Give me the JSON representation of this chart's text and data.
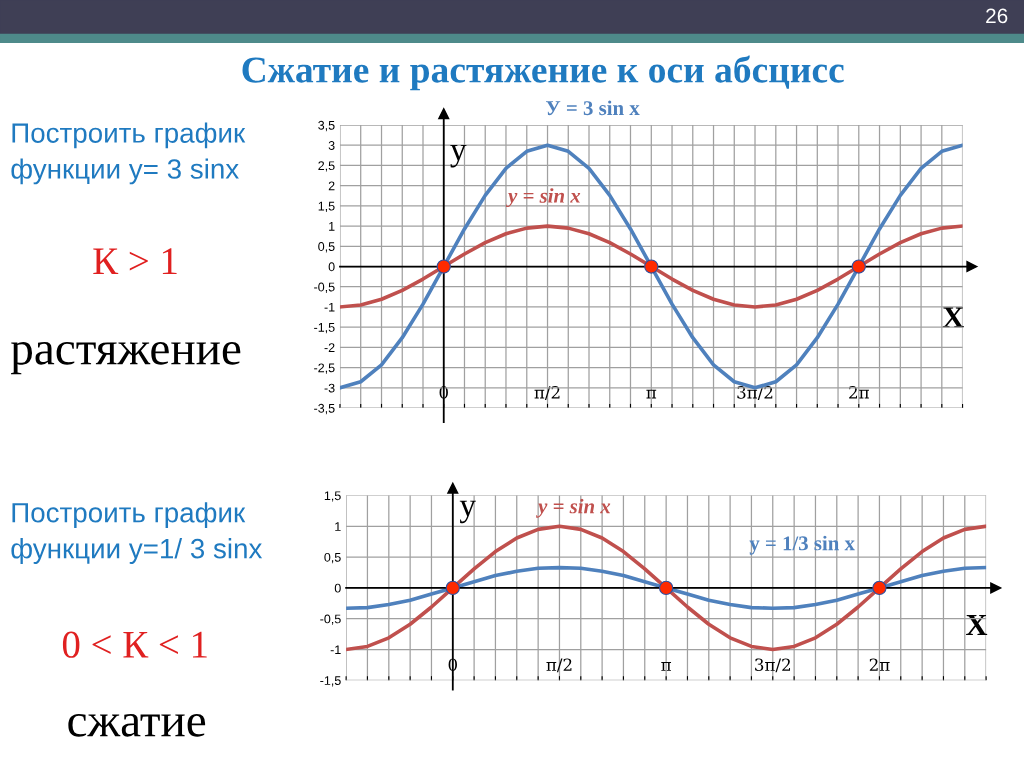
{
  "chart_data": [
    {
      "type": "line",
      "title": "Сжатие и растяжение к оси абсцисс",
      "xlabel": "X",
      "ylabel": "y",
      "annotations": [
        "26",
        "Построить график\nфункции у= 3 sinx",
        "К > 1",
        "растяжение"
      ],
      "x": [
        -1.571,
        -1.257,
        -0.942,
        -0.628,
        -0.314,
        0,
        0.314,
        0.628,
        0.942,
        1.257,
        1.571,
        1.885,
        2.199,
        2.513,
        2.827,
        3.142,
        3.456,
        3.77,
        4.084,
        4.398,
        4.712,
        5.027,
        5.341,
        5.655,
        5.969,
        6.283,
        6.597,
        6.912,
        7.226,
        7.54,
        7.854
      ],
      "series": [
        {
          "name": "У = 3 sin x",
          "color": "#4f81bd",
          "values": [
            -3,
            -2.85,
            -2.43,
            -1.76,
            -0.93,
            0,
            0.93,
            1.76,
            2.43,
            2.85,
            3,
            2.85,
            2.43,
            1.76,
            0.93,
            0,
            -0.93,
            -1.76,
            -2.43,
            -2.85,
            -3,
            -2.85,
            -2.43,
            -1.76,
            -0.93,
            0,
            0.93,
            1.76,
            2.43,
            2.85,
            3
          ]
        },
        {
          "name": "y = sin x",
          "color": "#c0504d",
          "values": [
            -1,
            -0.95,
            -0.81,
            -0.59,
            -0.31,
            0,
            0.31,
            0.59,
            0.81,
            0.95,
            1,
            0.95,
            0.81,
            0.59,
            0.31,
            0,
            -0.31,
            -0.59,
            -0.81,
            -0.95,
            -1,
            -0.95,
            -0.81,
            -0.59,
            -0.31,
            0,
            0.31,
            0.59,
            0.81,
            0.95,
            1
          ]
        },
        {
          "type": "scatter",
          "marker": "circle",
          "color": "#ff2a00",
          "x": [
            0,
            3.142,
            6.283
          ],
          "values": [
            0,
            0,
            0
          ]
        }
      ],
      "xlim": [
        -1.571,
        7.854
      ],
      "xticks": [
        {
          "value": -1.571,
          "label": null
        },
        {
          "value": -1.257,
          "label": null
        },
        {
          "value": -0.942,
          "label": null
        },
        {
          "value": -0.628,
          "label": null
        },
        {
          "value": -0.314,
          "label": null
        },
        {
          "value": 0,
          "label": "0"
        },
        {
          "value": 0.314,
          "label": null
        },
        {
          "value": 0.628,
          "label": null
        },
        {
          "value": 0.942,
          "label": null
        },
        {
          "value": 1.257,
          "label": null
        },
        {
          "value": 1.571,
          "label": "π/2"
        },
        {
          "value": 1.885,
          "label": null
        },
        {
          "value": 2.199,
          "label": null
        },
        {
          "value": 2.513,
          "label": null
        },
        {
          "value": 2.827,
          "label": null
        },
        {
          "value": 3.142,
          "label": "π"
        },
        {
          "value": 3.456,
          "label": null
        },
        {
          "value": 3.77,
          "label": null
        },
        {
          "value": 4.084,
          "label": null
        },
        {
          "value": 4.398,
          "label": null
        },
        {
          "value": 4.712,
          "label": "3π/2"
        },
        {
          "value": 5.027,
          "label": null
        },
        {
          "value": 5.341,
          "label": null
        },
        {
          "value": 5.655,
          "label": null
        },
        {
          "value": 5.969,
          "label": null
        },
        {
          "value": 6.283,
          "label": "2π"
        },
        {
          "value": 6.597,
          "label": null
        },
        {
          "value": 6.912,
          "label": null
        },
        {
          "value": 7.226,
          "label": null
        },
        {
          "value": 7.54,
          "label": null
        },
        {
          "value": 7.854,
          "label": null
        }
      ],
      "ylim": [
        -3.5,
        3.5
      ],
      "yticks": [
        {
          "value": -3.5,
          "label": "-3,5"
        },
        -3,
        {
          "value": -2.5,
          "label": "-2,5"
        },
        -2,
        {
          "value": -1.5,
          "label": "-1,5"
        },
        -1,
        {
          "value": -0.5,
          "label": "-0,5"
        },
        0,
        {
          "value": 0.5,
          "label": "0,5"
        },
        1,
        {
          "value": 1.5,
          "label": "1,5"
        },
        2,
        {
          "value": 2.5,
          "label": "2,5"
        },
        3,
        {
          "value": 3.5,
          "label": "3,5"
        }
      ],
      "grid": true,
      "marker": "none",
      "line_style": "solid",
      "legend": false
    },
    {
      "type": "line",
      "xlabel": "X",
      "ylabel": "y",
      "annotations": [
        "Построить график\nфункции y=1/ 3 sinx",
        "0 < К < 1",
        "сжатие"
      ],
      "x": [
        -1.571,
        -1.257,
        -0.942,
        -0.628,
        -0.314,
        0,
        0.314,
        0.628,
        0.942,
        1.257,
        1.571,
        1.885,
        2.199,
        2.513,
        2.827,
        3.142,
        3.456,
        3.77,
        4.084,
        4.398,
        4.712,
        5.027,
        5.341,
        5.655,
        5.969,
        6.283,
        6.597,
        6.912,
        7.226,
        7.54,
        7.854
      ],
      "series": [
        {
          "name": "y = sin x",
          "color": "#c0504d",
          "values": [
            -1,
            -0.95,
            -0.81,
            -0.59,
            -0.31,
            0,
            0.31,
            0.59,
            0.81,
            0.95,
            1,
            0.95,
            0.81,
            0.59,
            0.31,
            0,
            -0.31,
            -0.59,
            -0.81,
            -0.95,
            -1,
            -0.95,
            -0.81,
            -0.59,
            -0.31,
            0,
            0.31,
            0.59,
            0.81,
            0.95,
            1
          ]
        },
        {
          "name": "y = 1/3 sin x",
          "color": "#4f81bd",
          "values": [
            -0.33,
            -0.32,
            -0.27,
            -0.2,
            -0.1,
            0,
            0.1,
            0.2,
            0.27,
            0.32,
            0.33,
            0.32,
            0.27,
            0.2,
            0.1,
            0,
            -0.1,
            -0.2,
            -0.27,
            -0.32,
            -0.33,
            -0.32,
            -0.27,
            -0.2,
            -0.1,
            0,
            0.1,
            0.2,
            0.27,
            0.32,
            0.33
          ]
        },
        {
          "type": "scatter",
          "marker": "circle",
          "color": "#ff2a00",
          "x": [
            0,
            3.142,
            6.283
          ],
          "values": [
            0,
            0,
            0
          ]
        }
      ],
      "xlim": [
        -1.571,
        7.854
      ],
      "xticks": [
        {
          "value": -1.571,
          "label": null
        },
        {
          "value": -1.257,
          "label": null
        },
        {
          "value": -0.942,
          "label": null
        },
        {
          "value": -0.628,
          "label": null
        },
        {
          "value": -0.314,
          "label": null
        },
        {
          "value": 0,
          "label": "0"
        },
        {
          "value": 0.314,
          "label": null
        },
        {
          "value": 0.628,
          "label": null
        },
        {
          "value": 0.942,
          "label": null
        },
        {
          "value": 1.257,
          "label": null
        },
        {
          "value": 1.571,
          "label": "π/2"
        },
        {
          "value": 1.885,
          "label": null
        },
        {
          "value": 2.199,
          "label": null
        },
        {
          "value": 2.513,
          "label": null
        },
        {
          "value": 2.827,
          "label": null
        },
        {
          "value": 3.142,
          "label": "π"
        },
        {
          "value": 3.456,
          "label": null
        },
        {
          "value": 3.77,
          "label": null
        },
        {
          "value": 4.084,
          "label": null
        },
        {
          "value": 4.398,
          "label": null
        },
        {
          "value": 4.712,
          "label": "3π/2"
        },
        {
          "value": 5.027,
          "label": null
        },
        {
          "value": 5.341,
          "label": null
        },
        {
          "value": 5.655,
          "label": null
        },
        {
          "value": 5.969,
          "label": null
        },
        {
          "value": 6.283,
          "label": "2π"
        },
        {
          "value": 6.597,
          "label": null
        },
        {
          "value": 6.912,
          "label": null
        },
        {
          "value": 7.226,
          "label": null
        },
        {
          "value": 7.54,
          "label": null
        },
        {
          "value": 7.854,
          "label": null
        }
      ],
      "ylim": [
        -1.5,
        1.5
      ],
      "yticks": [
        {
          "value": -1.5,
          "label": "-1,5"
        },
        -1,
        {
          "value": -0.5,
          "label": "-0,5"
        },
        0,
        {
          "value": 0.5,
          "label": "0,5"
        },
        1,
        {
          "value": 1.5,
          "label": "1,5"
        }
      ],
      "grid": true,
      "marker": "none",
      "line_style": "solid",
      "legend": false
    }
  ]
}
